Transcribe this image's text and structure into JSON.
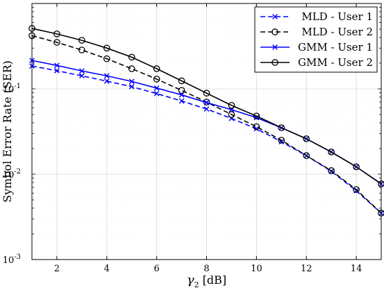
{
  "chart_data": {
    "type": "line",
    "title": "",
    "xlabel": "γ",
    "xlabel_sub": "2",
    "xlabel_unit": "[dB]",
    "ylabel": "Symbol Error Rate (SER)",
    "xlim": [
      1,
      15
    ],
    "ylim": [
      0.001,
      1
    ],
    "yscale": "log",
    "xticks": [
      2,
      4,
      6,
      8,
      10,
      12,
      14
    ],
    "yticks": [
      {
        "value": 0.001,
        "base": "10",
        "exp": "-3"
      },
      {
        "value": 0.01,
        "base": "10",
        "exp": "-2"
      },
      {
        "value": 0.1,
        "base": "10",
        "exp": "-1"
      }
    ],
    "grid": true,
    "legend_position": "top-right",
    "x": [
      1,
      2,
      3,
      4,
      5,
      6,
      7,
      8,
      9,
      10,
      11,
      12,
      13,
      14,
      15
    ],
    "series": [
      {
        "name": "MLD - User 1",
        "color": "#0000ff",
        "line": "dashed",
        "marker": "x",
        "values": [
          0.185,
          0.163,
          0.142,
          0.123,
          0.106,
          0.088,
          0.072,
          0.058,
          0.045,
          0.034,
          0.024,
          0.0165,
          0.0108,
          0.0064,
          0.0035
        ]
      },
      {
        "name": "MLD - User 2",
        "color": "#000000",
        "line": "dashed",
        "marker": "o",
        "values": [
          0.42,
          0.35,
          0.285,
          0.225,
          0.172,
          0.13,
          0.096,
          0.07,
          0.05,
          0.036,
          0.025,
          0.0165,
          0.011,
          0.0066,
          0.0035
        ]
      },
      {
        "name": "GMM - User 1",
        "color": "#0000ff",
        "line": "solid",
        "marker": "x",
        "values": [
          0.215,
          0.188,
          0.162,
          0.142,
          0.122,
          0.102,
          0.085,
          0.069,
          0.057,
          0.046,
          0.035,
          0.026,
          0.0182,
          0.0122,
          0.0077
        ]
      },
      {
        "name": "GMM - User 2",
        "color": "#000000",
        "line": "solid",
        "marker": "o",
        "values": [
          0.51,
          0.44,
          0.37,
          0.3,
          0.235,
          0.172,
          0.124,
          0.089,
          0.064,
          0.048,
          0.035,
          0.026,
          0.0182,
          0.0122,
          0.0077
        ]
      }
    ]
  }
}
